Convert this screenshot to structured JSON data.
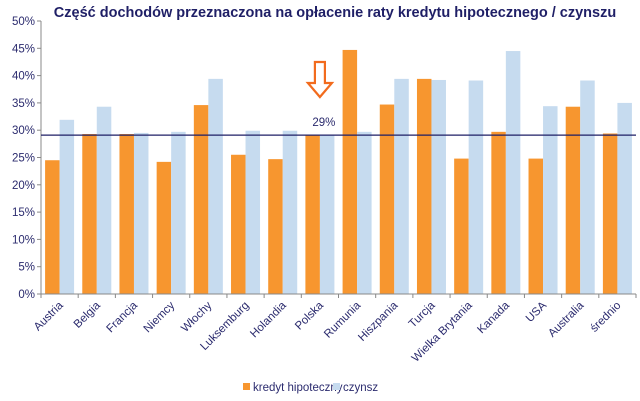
{
  "chart_data": {
    "type": "bar",
    "title": "Część dochodów przeznaczona na opłacenie raty kredytu hipotecznego / czynszu",
    "xlabel": "",
    "ylabel": "",
    "ylim": [
      0,
      50
    ],
    "yticks": [
      "0%",
      "5%",
      "10%",
      "15%",
      "20%",
      "25%",
      "30%",
      "35%",
      "40%",
      "45%",
      "50%"
    ],
    "grid": false,
    "legend_position": "bottom",
    "categories": [
      "Austria",
      "Belgia",
      "Francja",
      "Niemcy",
      "Włochy",
      "Luksemburg",
      "Holandia",
      "Polska",
      "Rumunia",
      "Hiszpania",
      "Turcja",
      "Wielka Brytania",
      "Kanada",
      "USA",
      "Australia",
      "średnio"
    ],
    "series": [
      {
        "name": "kredyt hipoteczny",
        "color": "#F7962F",
        "values": [
          24.5,
          29.3,
          29.3,
          24.2,
          34.6,
          25.5,
          24.7,
          29.1,
          44.7,
          34.7,
          39.4,
          24.8,
          29.7,
          24.8,
          34.3,
          29.4
        ]
      },
      {
        "name": "czynsz",
        "color": "#C6DBEF",
        "values": [
          31.9,
          34.3,
          29.5,
          29.7,
          39.4,
          29.9,
          29.9,
          29.1,
          29.7,
          39.4,
          39.2,
          39.1,
          44.5,
          34.4,
          39.1,
          35.0
        ]
      }
    ],
    "reference_line": {
      "value": 29.1,
      "label": "29%",
      "color": "#1f1f66"
    },
    "annotation": {
      "icon": "down-arrow-icon",
      "target": "Polska",
      "color": "#F26B1D"
    }
  }
}
